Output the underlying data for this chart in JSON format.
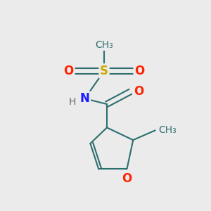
{
  "bg_color": "#ebebeb",
  "bond_color": "#2d6e6e",
  "bond_width": 1.5,
  "figsize": [
    3.0,
    3.0
  ],
  "dpi": 100,
  "atom_colors": {
    "S": "#ccaa00",
    "O": "#ff2200",
    "N": "#1a1aff",
    "C": "#2d6e6e",
    "H": "#666666"
  }
}
